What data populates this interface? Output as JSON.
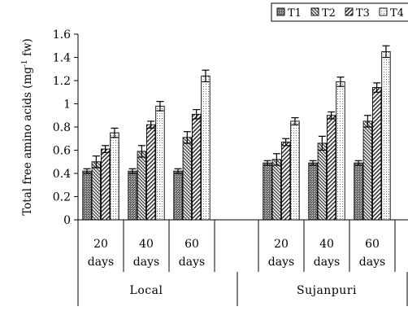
{
  "chart_data": {
    "type": "bar",
    "ylabel_main": "Total free amino acids (mg",
    "ylabel_sup": "-1",
    "ylabel_end": " fw)",
    "ylim": [
      0,
      1.6
    ],
    "yticks": [
      0,
      0.2,
      0.4,
      0.6,
      0.8,
      1,
      1.2,
      1.4,
      1.6
    ],
    "ytick_labels": [
      "0",
      "0.2",
      "0.4",
      "0.6",
      "0.8",
      "1",
      "1.2",
      "1.4",
      "1.6"
    ],
    "grid": false,
    "legend_position": "top-right",
    "groups": [
      {
        "label": "Local",
        "categories": [
          {
            "line1": "20",
            "line2": "days"
          },
          {
            "line1": "40",
            "line2": "days"
          },
          {
            "line1": "60",
            "line2": "days"
          }
        ]
      },
      {
        "label": "Sujanpuri",
        "categories": [
          {
            "line1": "20",
            "line2": "days"
          },
          {
            "line1": "40",
            "line2": "days"
          },
          {
            "line1": "60",
            "line2": "days"
          }
        ]
      }
    ],
    "series": [
      {
        "name": "T1",
        "values": [
          0.42,
          0.42,
          0.42,
          0.49,
          0.49,
          0.49
        ],
        "errors": [
          0.02,
          0.02,
          0.02,
          0.02,
          0.02,
          0.02
        ]
      },
      {
        "name": "T2",
        "values": [
          0.5,
          0.59,
          0.71,
          0.52,
          0.66,
          0.85
        ],
        "errors": [
          0.05,
          0.05,
          0.05,
          0.05,
          0.06,
          0.05
        ]
      },
      {
        "name": "T3",
        "values": [
          0.61,
          0.82,
          0.91,
          0.67,
          0.9,
          1.14
        ],
        "errors": [
          0.03,
          0.03,
          0.04,
          0.03,
          0.03,
          0.04
        ]
      },
      {
        "name": "T4",
        "values": [
          0.75,
          0.98,
          1.24,
          0.85,
          1.19,
          1.45
        ],
        "errors": [
          0.04,
          0.04,
          0.05,
          0.03,
          0.04,
          0.05
        ]
      }
    ]
  }
}
